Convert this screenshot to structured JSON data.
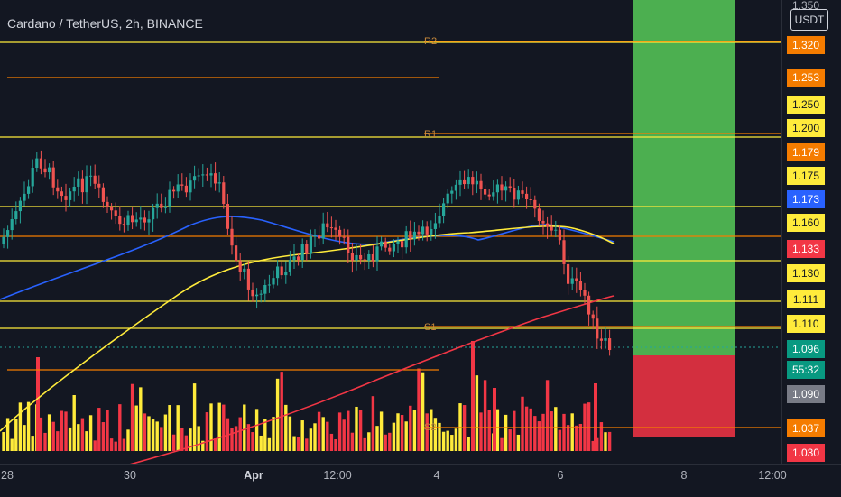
{
  "chart": {
    "symbol_title": "Cardano / TetherUS, 2h, BINANCE",
    "currency": "USDT",
    "top_partial_label": "1.350",
    "pivot_labels": [
      "R2",
      "R1",
      "S1",
      "S2"
    ],
    "time_ticks": [
      "28",
      "30",
      "Apr",
      "12:00",
      "4",
      "6",
      "8",
      "12:00"
    ],
    "price_labels": [
      {
        "text": "1.320",
        "bg": "#f57c00",
        "fg": "#ffffff"
      },
      {
        "text": "1.253",
        "bg": "#f57c00",
        "fg": "#ffffff"
      },
      {
        "text": "1.250",
        "bg": "#ffeb3b",
        "fg": "#131722"
      },
      {
        "text": "1.200",
        "bg": "#ffeb3b",
        "fg": "#131722"
      },
      {
        "text": "1.179",
        "bg": "#f57c00",
        "fg": "#ffffff"
      },
      {
        "text": "1.175",
        "bg": "#ffeb3b",
        "fg": "#131722"
      },
      {
        "text": "1.173",
        "bg": "#2962ff",
        "fg": "#ffffff"
      },
      {
        "text": "1.160",
        "bg": "#ffeb3b",
        "fg": "#131722"
      },
      {
        "text": "1.133",
        "bg": "#f23645",
        "fg": "#ffffff"
      },
      {
        "text": "1.130",
        "bg": "#ffeb3b",
        "fg": "#131722"
      },
      {
        "text": "1.111",
        "bg": "#ffeb3b",
        "fg": "#131722"
      },
      {
        "text": "1.110",
        "bg": "#ffeb3b",
        "fg": "#131722"
      },
      {
        "text": "1.096",
        "bg": "#089981",
        "fg": "#ffffff"
      },
      {
        "text": "55:32",
        "bg": "#089981",
        "fg": "#ffffff"
      },
      {
        "text": "1.090",
        "bg": "#787b86",
        "fg": "#ffffff"
      },
      {
        "text": "1.037",
        "bg": "#f57c00",
        "fg": "#ffffff"
      },
      {
        "text": "1.030",
        "bg": "#f23645",
        "fg": "#ffffff"
      }
    ],
    "colors": {
      "background": "#131722",
      "up_candle": "#26a69a",
      "down_candle": "#ef5350",
      "ma_blue": "#2962ff",
      "ma_yellow": "#ffeb3b",
      "ma_red": "#f23645",
      "pivot_orange": "#f57c00",
      "hline_yellow": "#ffeb3b",
      "target_zone": "#4caf50",
      "stop_zone": "#e0303e"
    }
  }
}
